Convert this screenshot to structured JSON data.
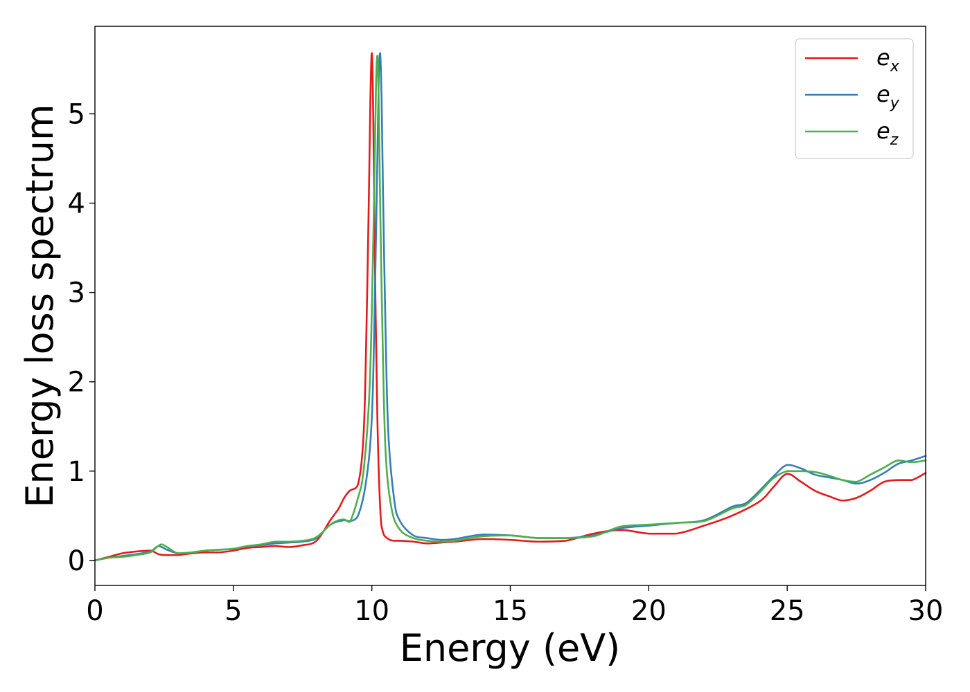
{
  "chart_data": {
    "type": "line",
    "title": "",
    "xlabel": "Energy (eV)",
    "ylabel": "Energy loss spectrum",
    "xlim": [
      0,
      30
    ],
    "ylim": [
      -0.28,
      5.98
    ],
    "xticks": [
      0,
      5,
      10,
      15,
      20,
      25,
      30
    ],
    "yticks": [
      0,
      1,
      2,
      3,
      4,
      5
    ],
    "xtick_labels": [
      "0",
      "5",
      "10",
      "15",
      "20",
      "25",
      "30"
    ],
    "ytick_labels": [
      "0",
      "1",
      "2",
      "3",
      "4",
      "5"
    ],
    "grid": false,
    "legend": {
      "position": "top-right"
    },
    "series": [
      {
        "name": "e_x",
        "label_main": "e",
        "label_sub": "x",
        "color": "#e41a1c",
        "x": [
          0,
          0.5,
          1,
          1.5,
          2,
          2.3,
          2.6,
          3,
          3.5,
          4,
          4.5,
          5,
          5.5,
          6,
          6.5,
          7,
          7.5,
          8,
          8.5,
          8.8,
          9,
          9.2,
          9.5,
          9.7,
          9.8,
          9.9,
          9.95,
          10.0,
          10.05,
          10.1,
          10.2,
          10.3,
          10.4,
          10.6,
          10.8,
          11,
          11.5,
          12,
          12.5,
          13,
          14,
          15,
          16,
          17,
          18,
          19,
          20,
          21,
          22,
          23,
          24,
          24.5,
          25,
          25.5,
          26,
          26.5,
          27,
          27.5,
          28,
          28.5,
          29,
          29.5,
          30
        ],
        "y": [
          0.0,
          0.04,
          0.08,
          0.1,
          0.11,
          0.07,
          0.06,
          0.06,
          0.08,
          0.09,
          0.09,
          0.11,
          0.14,
          0.15,
          0.16,
          0.15,
          0.17,
          0.22,
          0.45,
          0.58,
          0.7,
          0.78,
          0.85,
          1.4,
          2.5,
          4.2,
          5.2,
          5.68,
          5.0,
          3.6,
          1.6,
          0.6,
          0.32,
          0.24,
          0.22,
          0.22,
          0.21,
          0.19,
          0.2,
          0.21,
          0.24,
          0.23,
          0.21,
          0.22,
          0.3,
          0.34,
          0.3,
          0.3,
          0.39,
          0.5,
          0.66,
          0.82,
          0.97,
          0.88,
          0.78,
          0.72,
          0.67,
          0.7,
          0.78,
          0.88,
          0.9,
          0.9,
          0.98
        ]
      },
      {
        "name": "e_y",
        "label_main": "e",
        "label_sub": "y",
        "color": "#377eb8",
        "x": [
          0,
          0.5,
          1,
          1.5,
          2,
          2.3,
          2.6,
          3,
          3.5,
          4,
          4.5,
          5,
          5.5,
          6,
          6.5,
          7,
          7.5,
          8,
          8.5,
          9,
          9.2,
          9.5,
          9.8,
          10.0,
          10.1,
          10.2,
          10.25,
          10.3,
          10.35,
          10.4,
          10.5,
          10.6,
          10.8,
          11,
          11.5,
          12,
          12.5,
          13,
          14,
          15,
          16,
          17,
          18,
          19,
          20,
          21,
          22,
          23,
          23.5,
          24,
          24.5,
          25,
          25.5,
          26,
          26.5,
          27,
          27.5,
          28,
          28.5,
          29,
          29.5,
          30
        ],
        "y": [
          0.0,
          0.03,
          0.05,
          0.07,
          0.1,
          0.16,
          0.12,
          0.08,
          0.09,
          0.11,
          0.12,
          0.13,
          0.16,
          0.17,
          0.19,
          0.2,
          0.21,
          0.25,
          0.4,
          0.45,
          0.44,
          0.5,
          0.9,
          1.6,
          2.8,
          4.5,
          5.4,
          5.68,
          5.2,
          4.2,
          2.5,
          1.4,
          0.7,
          0.45,
          0.28,
          0.25,
          0.23,
          0.24,
          0.29,
          0.28,
          0.25,
          0.25,
          0.28,
          0.36,
          0.39,
          0.42,
          0.45,
          0.6,
          0.64,
          0.78,
          0.94,
          1.07,
          1.03,
          0.96,
          0.93,
          0.9,
          0.86,
          0.9,
          0.98,
          1.08,
          1.12,
          1.17
        ]
      },
      {
        "name": "e_z",
        "label_main": "e",
        "label_sub": "z",
        "color": "#4daf4a",
        "x": [
          0,
          0.5,
          1,
          1.5,
          2,
          2.2,
          2.4,
          2.6,
          3,
          3.5,
          4,
          4.5,
          5,
          5.5,
          6,
          6.5,
          7,
          7.5,
          8,
          8.5,
          8.8,
          9,
          9.2,
          9.5,
          9.7,
          9.9,
          10.0,
          10.1,
          10.15,
          10.2,
          10.25,
          10.3,
          10.4,
          10.5,
          10.7,
          11,
          11.5,
          12,
          12.5,
          13,
          14,
          15,
          16,
          17,
          18,
          19,
          20,
          21,
          22,
          23,
          23.5,
          24,
          24.5,
          25,
          25.5,
          26,
          26.5,
          27,
          27.5,
          28,
          28.5,
          29,
          29.5,
          30
        ],
        "y": [
          0.0,
          0.03,
          0.04,
          0.06,
          0.09,
          0.14,
          0.18,
          0.15,
          0.08,
          0.09,
          0.11,
          0.12,
          0.13,
          0.16,
          0.18,
          0.21,
          0.21,
          0.22,
          0.26,
          0.4,
          0.45,
          0.46,
          0.43,
          0.7,
          1.0,
          1.8,
          2.8,
          4.4,
          5.3,
          5.65,
          5.1,
          4.0,
          2.3,
          1.2,
          0.6,
          0.35,
          0.25,
          0.22,
          0.21,
          0.22,
          0.27,
          0.28,
          0.25,
          0.25,
          0.27,
          0.38,
          0.4,
          0.42,
          0.44,
          0.58,
          0.62,
          0.76,
          0.92,
          1.0,
          1.0,
          0.99,
          0.95,
          0.9,
          0.88,
          0.96,
          1.04,
          1.12,
          1.1,
          1.12
        ]
      }
    ]
  }
}
